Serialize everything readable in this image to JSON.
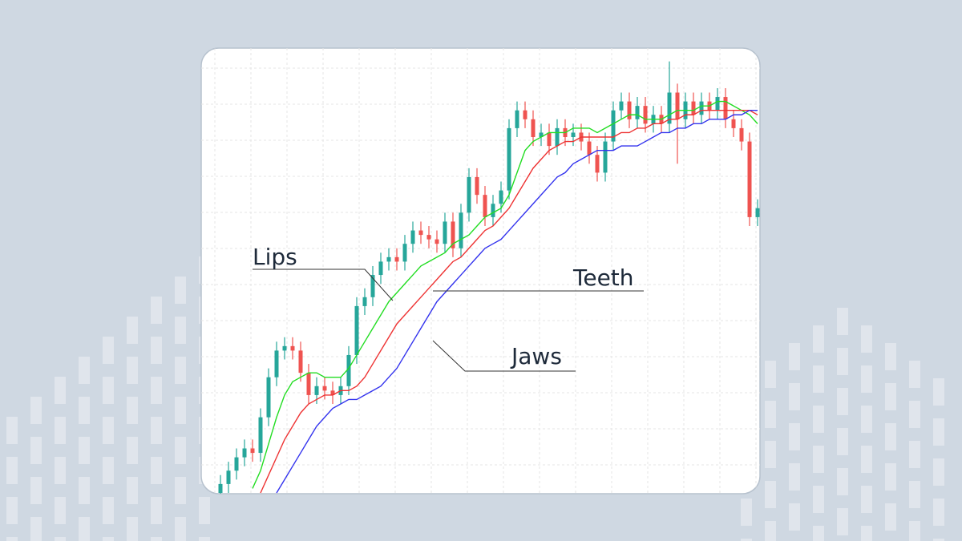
{
  "chart_data": {
    "type": "candlestick",
    "ylim": [
      0,
      100
    ],
    "up_color": "#26a69a",
    "down_color": "#ef5350",
    "grid": true,
    "open": [
      0,
      2,
      5,
      8,
      10,
      9,
      17,
      26,
      32,
      33,
      32,
      27,
      22,
      24,
      23,
      22,
      24,
      31,
      42,
      44,
      49,
      52,
      53,
      52,
      56,
      59,
      58,
      57,
      56,
      61,
      55,
      63,
      71,
      67,
      62,
      65,
      68,
      82,
      86,
      84,
      80,
      81,
      78,
      82,
      80,
      81,
      79,
      76,
      72,
      79,
      86,
      88,
      84,
      87,
      83,
      85,
      83,
      90,
      84,
      88,
      85,
      88,
      86,
      89,
      84,
      82,
      79,
      62
    ],
    "high": [
      4,
      7,
      10,
      12,
      12,
      19,
      28,
      34,
      35,
      35,
      34,
      29,
      26,
      26,
      25,
      26,
      33,
      44,
      46,
      51,
      54,
      55,
      55,
      58,
      61,
      61,
      60,
      59,
      63,
      63,
      65,
      73,
      73,
      69,
      67,
      70,
      84,
      88,
      88,
      86,
      83,
      83,
      84,
      84,
      83,
      83,
      81,
      78,
      81,
      88,
      90,
      90,
      89,
      89,
      87,
      87,
      97,
      92,
      90,
      90,
      90,
      90,
      91,
      91,
      86,
      84,
      81,
      66
    ],
    "low": [
      -2,
      0,
      3,
      6,
      7,
      7,
      15,
      24,
      30,
      30,
      25,
      20,
      20,
      21,
      20,
      20,
      22,
      29,
      40,
      42,
      47,
      50,
      50,
      50,
      54,
      56,
      55,
      54,
      54,
      53,
      53,
      61,
      65,
      60,
      60,
      63,
      66,
      80,
      82,
      78,
      78,
      76,
      76,
      78,
      78,
      77,
      74,
      70,
      70,
      77,
      84,
      82,
      82,
      81,
      81,
      81,
      81,
      74,
      82,
      83,
      83,
      84,
      84,
      82,
      80,
      77,
      60,
      60
    ],
    "close": [
      2,
      5,
      8,
      10,
      9,
      17,
      26,
      32,
      33,
      32,
      27,
      22,
      24,
      23,
      22,
      24,
      31,
      42,
      44,
      49,
      52,
      53,
      52,
      56,
      59,
      58,
      57,
      56,
      61,
      55,
      63,
      71,
      67,
      62,
      65,
      68,
      82,
      86,
      84,
      80,
      81,
      78,
      82,
      80,
      81,
      79,
      76,
      72,
      79,
      86,
      88,
      84,
      87,
      83,
      85,
      83,
      90,
      84,
      88,
      85,
      88,
      86,
      89,
      84,
      82,
      79,
      62,
      64
    ],
    "series": [
      {
        "name": "Lips",
        "color": "#22dd22",
        "values": [
          null,
          null,
          null,
          null,
          1,
          5,
          11,
          17,
          22,
          25,
          26,
          27,
          27,
          26,
          26,
          26,
          28,
          31,
          34,
          37,
          40,
          43,
          45,
          47,
          49,
          51,
          52,
          53,
          54,
          56,
          57,
          58,
          60,
          62,
          63,
          64,
          67,
          72,
          77,
          79,
          80,
          81,
          81,
          81,
          82,
          82,
          82,
          81,
          82,
          83,
          84,
          85,
          85,
          84,
          84,
          84,
          85,
          86,
          86,
          86,
          87,
          87,
          88,
          88,
          87,
          86,
          85,
          83
        ]
      },
      {
        "name": "Teeth",
        "color": "#ee3333",
        "values": [
          null,
          null,
          null,
          null,
          null,
          0,
          4,
          8,
          12,
          15,
          18,
          20,
          21,
          22,
          22,
          23,
          23,
          24,
          26,
          29,
          32,
          35,
          38,
          40,
          42,
          44,
          46,
          48,
          50,
          52,
          53,
          55,
          57,
          59,
          60,
          62,
          64,
          67,
          70,
          73,
          75,
          77,
          78,
          79,
          79,
          80,
          80,
          80,
          80,
          80,
          81,
          81,
          82,
          82,
          83,
          83,
          84,
          84,
          85,
          85,
          86,
          86,
          86,
          86,
          86,
          86,
          86,
          85
        ]
      },
      {
        "name": "Jaws",
        "color": "#3333ee",
        "values": [
          null,
          null,
          null,
          null,
          null,
          null,
          null,
          0,
          3,
          6,
          9,
          12,
          15,
          17,
          19,
          20,
          21,
          21,
          22,
          23,
          24,
          26,
          28,
          31,
          34,
          37,
          40,
          43,
          45,
          47,
          49,
          51,
          53,
          55,
          56,
          57,
          59,
          61,
          63,
          65,
          67,
          69,
          71,
          72,
          74,
          75,
          76,
          77,
          77,
          77,
          78,
          78,
          78,
          79,
          80,
          81,
          81,
          82,
          82,
          83,
          83,
          84,
          84,
          84,
          85,
          85,
          86,
          86
        ]
      }
    ]
  }
}
